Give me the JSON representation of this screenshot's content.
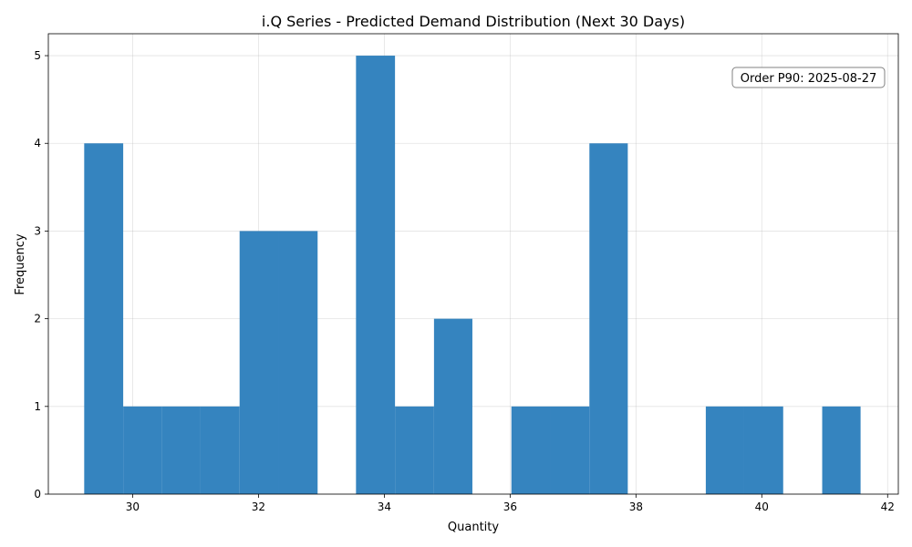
{
  "chart_data": {
    "type": "bar",
    "title": "i.Q Series - Predicted Demand Distribution (Next 30 Days)",
    "xlabel": "Quantity",
    "ylabel": "Frequency",
    "xlim": [
      28.66,
      42.17
    ],
    "ylim": [
      0,
      5.25
    ],
    "xticks": [
      30,
      32,
      34,
      36,
      38,
      40,
      42
    ],
    "yticks": [
      0,
      1,
      2,
      3,
      4,
      5
    ],
    "grid": true,
    "bar_color": "#3584bf",
    "bin_edges": [
      29.23,
      29.85,
      30.47,
      31.08,
      31.7,
      32.32,
      32.94,
      33.55,
      34.17,
      34.79,
      35.4,
      36.02,
      36.64,
      37.26,
      37.87,
      38.49,
      39.11,
      39.72,
      40.34,
      40.96,
      41.57
    ],
    "values": [
      4,
      1,
      1,
      1,
      3,
      3,
      0,
      5,
      1,
      2,
      0,
      1,
      1,
      4,
      0,
      0,
      1,
      1,
      0,
      1
    ],
    "annotation": {
      "text": "Order P90: 2025-08-27",
      "placement": "top-right"
    }
  }
}
